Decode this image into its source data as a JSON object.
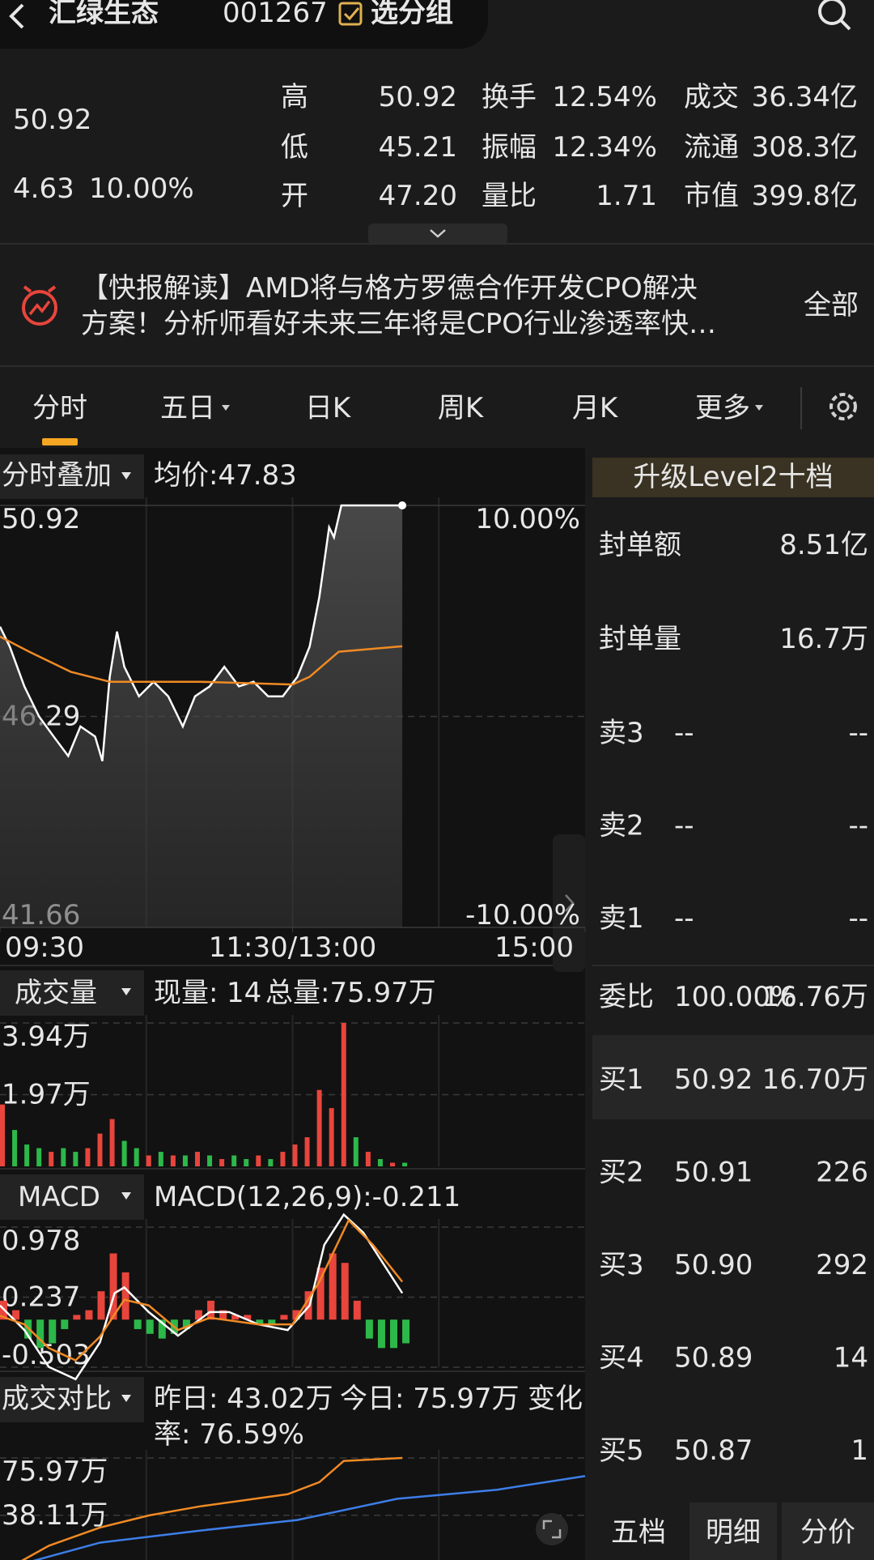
{
  "header": {
    "title": "汇绿生态",
    "code": "001267",
    "group_button": "选分组"
  },
  "quote": {
    "price": "50.92",
    "change": "4.63",
    "change_pct": "10.00%",
    "color": "#e8453c",
    "stats": [
      [
        {
          "label": "高",
          "value": "50.92",
          "color": "#e8453c"
        },
        {
          "label": "换手",
          "value": "12.54%"
        },
        {
          "label": "成交",
          "value": "36.34亿"
        }
      ],
      [
        {
          "label": "低",
          "value": "45.21",
          "color": "#2db84a"
        },
        {
          "label": "振幅",
          "value": "12.34%"
        },
        {
          "label": "流通",
          "value": "308.3亿"
        }
      ],
      [
        {
          "label": "开",
          "value": "47.20",
          "color": "#e8453c"
        },
        {
          "label": "量比",
          "value": "1.71"
        },
        {
          "label": "市值",
          "value": "399.8亿"
        }
      ]
    ]
  },
  "news": {
    "lines": [
      "【快报解读】AMD将与格方罗德合作开发CPO解决",
      "方案！分析师看好未来三年将是CPO行业渗透率快…"
    ],
    "more": "全部"
  },
  "tabs": {
    "items": [
      "分时",
      "五日",
      "日K",
      "周K",
      "月K",
      "更多"
    ],
    "active": 0
  },
  "chart_data": [
    {
      "type": "line",
      "title": "分时叠加",
      "avg_label": "均价:47.83",
      "xlim": [
        0,
        240
      ],
      "xticks": [
        {
          "value": 0,
          "label": "09:30"
        },
        {
          "value": 120,
          "label": "11:30/13:00"
        },
        {
          "value": 240,
          "label": "15:00"
        }
      ],
      "ylim": [
        41.66,
        50.92
      ],
      "yticks": [
        50.92,
        46.29,
        41.66
      ],
      "y2lim": [
        -10,
        10
      ],
      "y2ticks": [
        {
          "value": 10,
          "label": "10.00%"
        },
        {
          "value": -10,
          "label": "-10.00%"
        }
      ],
      "area": true,
      "series": [
        {
          "color": "#ffffff",
          "x": [
            0,
            4,
            10,
            16,
            22,
            28,
            33,
            39,
            42,
            45,
            48,
            51,
            57,
            63,
            69,
            75,
            80,
            86,
            92,
            98,
            104,
            110,
            116,
            122,
            127,
            131,
            135,
            137,
            140,
            165
          ],
          "values": [
            48.26,
            47.82,
            46.95,
            46.29,
            45.85,
            45.42,
            46.07,
            45.85,
            45.31,
            47.16,
            48.15,
            47.38,
            46.73,
            47.05,
            46.73,
            46.07,
            46.73,
            46.95,
            47.38,
            46.95,
            47.05,
            46.73,
            46.73,
            47.16,
            47.82,
            48.91,
            50.44,
            50.22,
            50.92,
            50.92
          ]
        },
        {
          "color": "#f08a24",
          "x": [
            0,
            12,
            29,
            45,
            82,
            120,
            127,
            139,
            165
          ],
          "values": [
            48.04,
            47.71,
            47.27,
            47.05,
            47.05,
            46.99,
            47.16,
            47.71,
            47.83
          ]
        }
      ]
    },
    {
      "type": "bar",
      "title": "成交量",
      "current_label": "现量:",
      "current_value": "14",
      "total": "总量:75.97万",
      "xlim": [
        0,
        240
      ],
      "ylim": [
        0,
        3.94
      ],
      "yticks": [
        {
          "value": 3.94,
          "label": "3.94万"
        },
        {
          "value": 1.97,
          "label": "1.97万"
        }
      ],
      "x": [
        0,
        5,
        10,
        15,
        20,
        25,
        30,
        35,
        40,
        45,
        50,
        55,
        60,
        65,
        70,
        75,
        80,
        85,
        90,
        95,
        100,
        105,
        110,
        115,
        120,
        125,
        130,
        135,
        140,
        145,
        150,
        155,
        160,
        165
      ],
      "values": [
        1.7,
        1.0,
        0.6,
        0.5,
        0.4,
        0.5,
        0.4,
        0.5,
        0.9,
        1.3,
        0.7,
        0.5,
        0.3,
        0.4,
        0.3,
        0.3,
        0.4,
        0.3,
        0.2,
        0.3,
        0.2,
        0.3,
        0.2,
        0.4,
        0.6,
        0.8,
        2.1,
        1.6,
        3.94,
        0.8,
        0.4,
        0.2,
        0.1,
        0.1
      ],
      "colors": [
        "#e8453c",
        "#2db84a",
        "#2db84a",
        "#2db84a",
        "#e8453c",
        "#2db84a",
        "#2db84a",
        "#e8453c",
        "#e8453c",
        "#e8453c",
        "#2db84a",
        "#2db84a",
        "#e8453c",
        "#2db84a",
        "#e8453c",
        "#2db84a",
        "#e8453c",
        "#2db84a",
        "#e8453c",
        "#2db84a",
        "#2db84a",
        "#e8453c",
        "#2db84a",
        "#e8453c",
        "#e8453c",
        "#e8453c",
        "#e8453c",
        "#e8453c",
        "#e8453c",
        "#2db84a",
        "#e8453c",
        "#2db84a",
        "#e8453c",
        "#2db84a"
      ]
    },
    {
      "type": "macd",
      "title": "MACD",
      "indicator": "MACD(12,26,9):-0.211",
      "indicator_color": "#3bb54a",
      "xlim": [
        0,
        240
      ],
      "ylim": [
        -0.503,
        0.978
      ],
      "yticks": [
        0.978,
        0.237,
        -0.503
      ],
      "series": [
        {
          "color": "#ffffff",
          "x": [
            0,
            10,
            20,
            31,
            41,
            47,
            51,
            61,
            73,
            86,
            94,
            106,
            118,
            127,
            133,
            141,
            149,
            157,
            165
          ],
          "values": [
            0.15,
            -0.11,
            -0.5,
            -0.63,
            -0.24,
            0.28,
            0.34,
            0.08,
            -0.17,
            0.08,
            0.08,
            -0.05,
            -0.11,
            0.15,
            0.79,
            1.11,
            0.92,
            0.6,
            0.28
          ]
        },
        {
          "color": "#f08a24",
          "x": [
            0,
            10,
            20,
            31,
            41,
            51,
            61,
            73,
            86,
            106,
            120,
            131,
            143,
            153,
            165
          ],
          "values": [
            0.04,
            -0.05,
            -0.3,
            -0.43,
            -0.18,
            0.21,
            0.15,
            -0.11,
            0.02,
            -0.05,
            -0.05,
            0.4,
            1.05,
            0.79,
            0.4
          ]
        }
      ],
      "histogram": {
        "x": [
          0,
          5,
          10,
          15,
          20,
          25,
          30,
          35,
          40,
          45,
          50,
          55,
          60,
          65,
          70,
          75,
          80,
          85,
          90,
          95,
          100,
          105,
          110,
          115,
          120,
          125,
          130,
          135,
          140,
          145,
          150,
          155,
          160,
          165
        ],
        "values": [
          0.2,
          0.1,
          -0.2,
          -0.3,
          -0.25,
          -0.1,
          0.05,
          0.1,
          0.3,
          0.7,
          0.5,
          -0.1,
          -0.15,
          -0.2,
          -0.15,
          -0.1,
          0.1,
          0.2,
          0.1,
          0.05,
          0.05,
          -0.05,
          -0.05,
          0.05,
          0.1,
          0.3,
          0.55,
          0.7,
          0.6,
          0.2,
          -0.2,
          -0.3,
          -0.3,
          -0.25
        ],
        "colors": [
          "#e8453c",
          "#2db84a"
        ]
      }
    },
    {
      "type": "line",
      "title": "成交对比",
      "yesterday": "昨日: 43.02万",
      "today": "今日: 75.97万",
      "change_rate": [
        "变化",
        "率: 76.59%"
      ],
      "xlim": [
        0,
        240
      ],
      "ylim": [
        0,
        75.97
      ],
      "yticks": [
        {
          "value": 75.97,
          "label": "75.97万"
        },
        {
          "value": 38.11,
          "label": "38.11万"
        }
      ],
      "series": [
        {
          "color": "#3d7ee8",
          "x": [
            0,
            41,
            82,
            122,
            163,
            204,
            240
          ],
          "values": [
            2,
            20,
            28,
            35,
            49,
            55,
            64
          ]
        },
        {
          "color": "#f08a24",
          "x": [
            0,
            20,
            41,
            61,
            82,
            118,
            131,
            141,
            165
          ],
          "values": [
            0,
            18,
            30,
            38,
            44,
            52,
            60,
            74,
            75.97
          ]
        }
      ]
    }
  ],
  "order_book": {
    "upgrade": "升级Level2十档",
    "seal": [
      {
        "label": "封单额",
        "value": "8.51亿"
      },
      {
        "label": "封单量",
        "value": "16.7万"
      }
    ],
    "asks": [
      {
        "label": "卖3",
        "price": "--",
        "volume": "--"
      },
      {
        "label": "卖2",
        "price": "--",
        "volume": "--"
      },
      {
        "label": "卖1",
        "price": "--",
        "volume": "--"
      }
    ],
    "ratio": {
      "label": "委比",
      "pct": "100.00%",
      "volume": "16.76万"
    },
    "bids": [
      {
        "label": "买1",
        "price": "50.92",
        "volume": "16.70万"
      },
      {
        "label": "买2",
        "price": "50.91",
        "volume": "226"
      },
      {
        "label": "买3",
        "price": "50.90",
        "volume": "292"
      },
      {
        "label": "买4",
        "price": "50.89",
        "volume": "14"
      },
      {
        "label": "买5",
        "price": "50.87",
        "volume": "1"
      }
    ],
    "tabs": [
      "五档",
      "明细",
      "分价"
    ],
    "active_tab": 0
  }
}
